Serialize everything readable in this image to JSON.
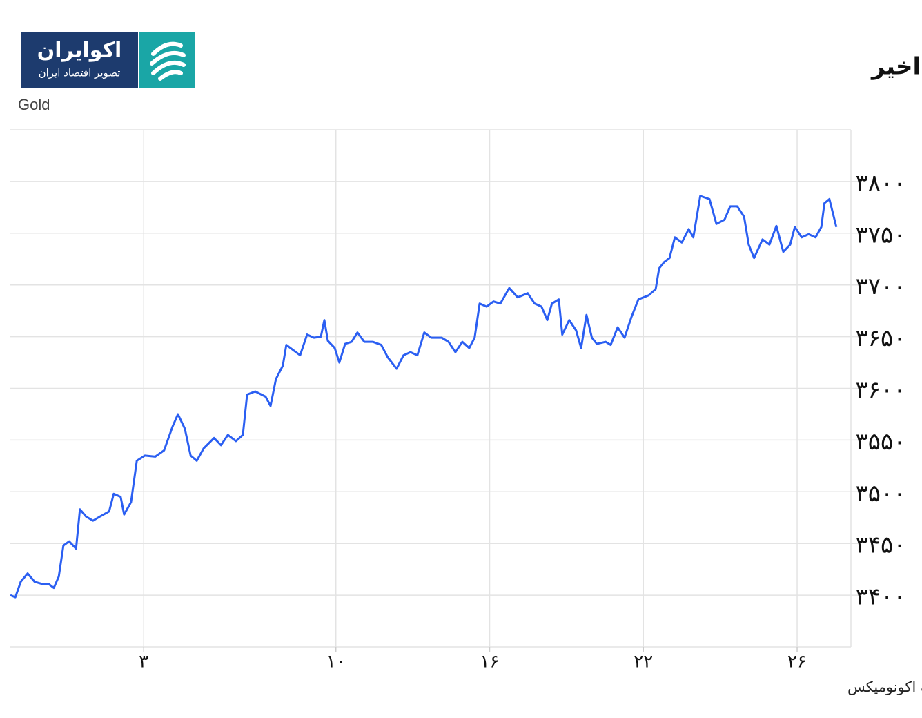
{
  "logo": {
    "name": "اکوایران",
    "tagline": "تصویر اقتصاد ایران"
  },
  "chart_data": {
    "type": "line",
    "title": "روند طلای جهانی در یک ماه اخیر",
    "subtitle": "Gold",
    "source": "منبع: تریدینگ اکونومیکس",
    "xlim": [
      0,
      21.87
    ],
    "xticks": [
      {
        "value": 3.47,
        "label": "۳"
      },
      {
        "value": 8.47,
        "label": "۱۰"
      },
      {
        "value": 12.47,
        "label": "۱۶"
      },
      {
        "value": 16.47,
        "label": "۲۲"
      },
      {
        "value": 20.47,
        "label": "۲۶"
      }
    ],
    "ylim": [
      3350,
      3850
    ],
    "yticks": [
      {
        "value": 3400,
        "label": "۳۴۰۰"
      },
      {
        "value": 3450,
        "label": "۳۴۵۰"
      },
      {
        "value": 3500,
        "label": "۳۵۰۰"
      },
      {
        "value": 3550,
        "label": "۳۵۵۰"
      },
      {
        "value": 3600,
        "label": "۳۶۰۰"
      },
      {
        "value": 3650,
        "label": "۳۶۵۰"
      },
      {
        "value": 3700,
        "label": "۳۷۰۰"
      },
      {
        "value": 3750,
        "label": "۳۷۵۰"
      },
      {
        "value": 3800,
        "label": "۳۸۰۰"
      }
    ],
    "grid": true,
    "color": "#2b5ff2",
    "x": [
      0,
      0.13,
      0.27,
      0.45,
      0.63,
      0.81,
      0.99,
      1.13,
      1.26,
      1.38,
      1.53,
      1.71,
      1.81,
      1.97,
      2.15,
      2.33,
      2.57,
      2.69,
      2.87,
      2.96,
      3.14,
      3.29,
      3.5,
      3.77,
      4.0,
      4.22,
      4.36,
      4.54,
      4.69,
      4.85,
      5.03,
      5.3,
      5.48,
      5.66,
      5.87,
      6.05,
      6.16,
      6.37,
      6.64,
      6.77,
      6.91,
      7.09,
      7.18,
      7.36,
      7.54,
      7.72,
      7.9,
      8.08,
      8.17,
      8.26,
      8.44,
      8.56,
      8.71,
      8.88,
      9.03,
      9.21,
      9.43,
      9.65,
      9.82,
      10.05,
      10.23,
      10.41,
      10.59,
      10.77,
      10.95,
      11.22,
      11.4,
      11.58,
      11.76,
      11.94,
      12.08,
      12.21,
      12.39,
      12.57,
      12.75,
      12.98,
      13.2,
      13.46,
      13.64,
      13.82,
      13.97,
      14.09,
      14.27,
      14.36,
      14.54,
      14.72,
      14.85,
      14.99,
      15.13,
      15.26,
      15.49,
      15.62,
      15.8,
      15.98,
      16.16,
      16.34,
      16.61,
      16.79,
      16.88,
      17.01,
      17.15,
      17.29,
      17.47,
      17.65,
      17.77,
      17.95,
      18.19,
      18.37,
      18.58,
      18.73,
      18.91,
      19.09,
      19.21,
      19.35,
      19.57,
      19.75,
      19.93,
      20.11,
      20.29,
      20.41,
      20.59,
      20.77,
      20.95,
      21.1,
      21.18,
      21.31,
      21.49
    ],
    "values": [
      3400,
      3398,
      3413,
      3421,
      3413,
      3411,
      3411,
      3407,
      3418,
      3448,
      3452,
      3445,
      3483,
      3476,
      3472,
      3476,
      3481,
      3498,
      3495,
      3478,
      3490,
      3530,
      3535,
      3534,
      3540,
      3563,
      3575,
      3561,
      3535,
      3530,
      3542,
      3552,
      3545,
      3555,
      3549,
      3555,
      3594,
      3597,
      3592,
      3583,
      3609,
      3622,
      3642,
      3637,
      3632,
      3652,
      3649,
      3650,
      3666,
      3646,
      3639,
      3625,
      3643,
      3645,
      3654,
      3645,
      3645,
      3642,
      3630,
      3619,
      3632,
      3635,
      3632,
      3654,
      3649,
      3649,
      3645,
      3635,
      3645,
      3639,
      3649,
      3682,
      3679,
      3684,
      3682,
      3697,
      3688,
      3692,
      3682,
      3679,
      3666,
      3682,
      3686,
      3652,
      3666,
      3656,
      3639,
      3671,
      3649,
      3643,
      3645,
      3642,
      3659,
      3649,
      3669,
      3686,
      3690,
      3696,
      3716,
      3722,
      3726,
      3746,
      3741,
      3754,
      3746,
      3786,
      3783,
      3759,
      3763,
      3776,
      3776,
      3766,
      3739,
      3726,
      3744,
      3739,
      3757,
      3732,
      3739,
      3756,
      3746,
      3749,
      3746,
      3756,
      3779,
      3783,
      3756
    ]
  }
}
